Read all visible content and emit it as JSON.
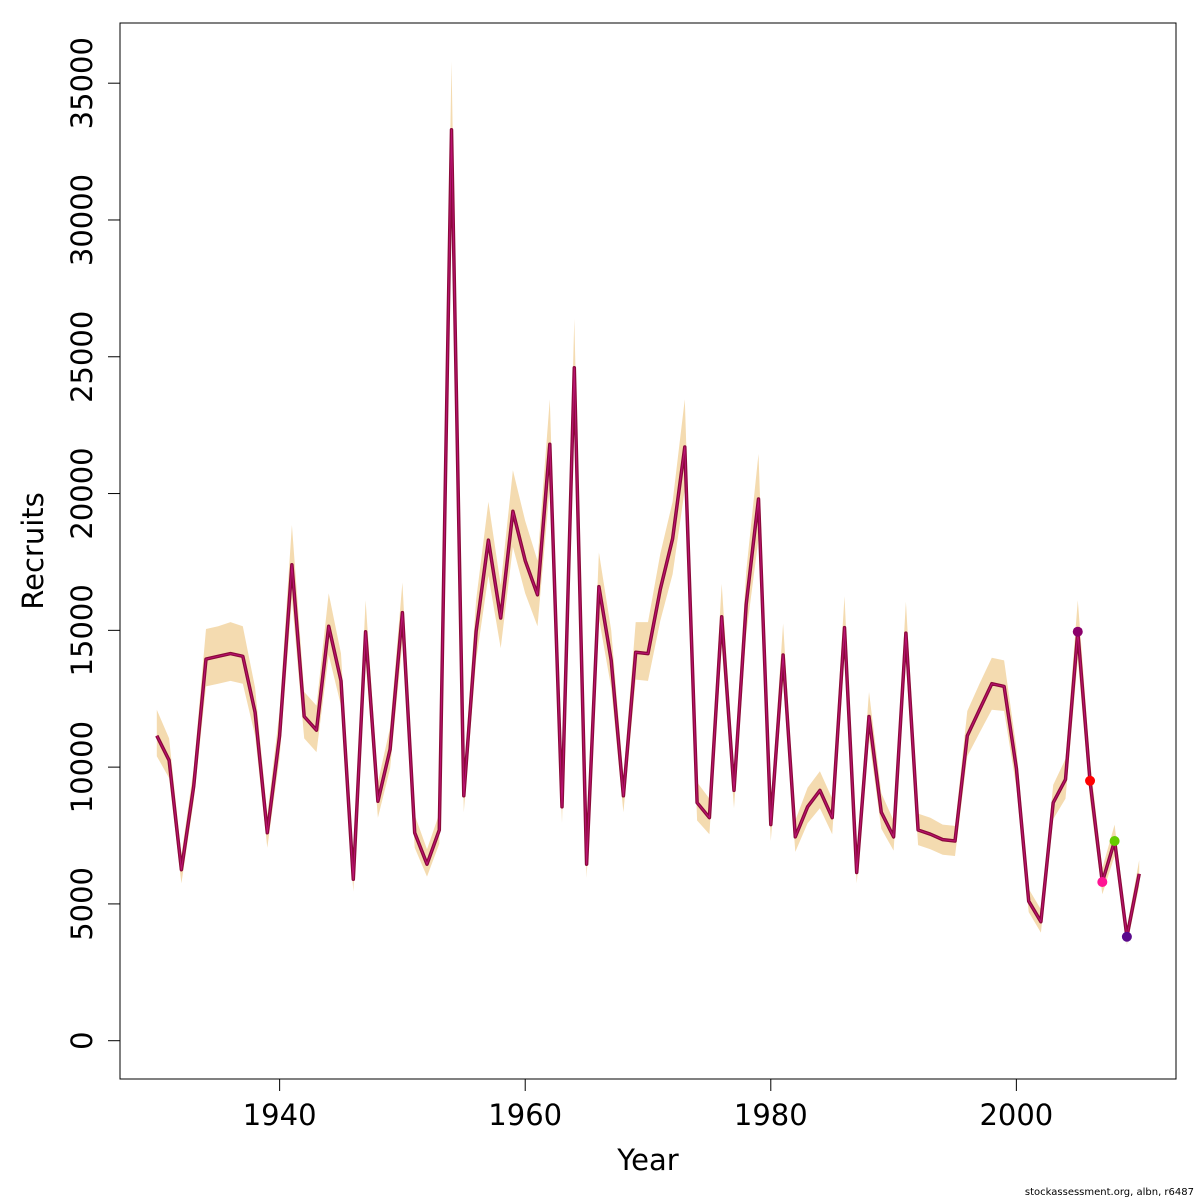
{
  "chart_data": {
    "type": "line",
    "xlabel": "Year",
    "ylabel": "Recruits",
    "xlim": [
      1927,
      2013
    ],
    "ylim": [
      -1400,
      37200
    ],
    "x_ticks": [
      1940,
      1960,
      1980,
      2000
    ],
    "y_ticks": [
      0,
      5000,
      10000,
      15000,
      20000,
      25000,
      30000,
      35000
    ],
    "grid": false,
    "legend": "none",
    "colors": {
      "band": "#f4dbb0",
      "line": "#8b0a3a",
      "inner_line": "#c71585"
    },
    "x": [
      1930,
      1931,
      1932,
      1933,
      1934,
      1935,
      1936,
      1937,
      1938,
      1939,
      1940,
      1941,
      1942,
      1943,
      1944,
      1945,
      1946,
      1947,
      1948,
      1949,
      1950,
      1951,
      1952,
      1953,
      1954,
      1955,
      1956,
      1957,
      1958,
      1959,
      1960,
      1961,
      1962,
      1963,
      1964,
      1965,
      1966,
      1967,
      1968,
      1969,
      1970,
      1971,
      1972,
      1973,
      1974,
      1975,
      1976,
      1977,
      1978,
      1979,
      1980,
      1981,
      1982,
      1983,
      1984,
      1985,
      1986,
      1987,
      1988,
      1989,
      1990,
      1991,
      1992,
      1993,
      1994,
      1995,
      1996,
      1997,
      1998,
      1999,
      2000,
      2001,
      2002,
      2003,
      2004,
      2005,
      2006,
      2007,
      2008,
      2009,
      2010
    ],
    "series": [
      {
        "values": [
          11150,
          10250,
          6250,
          9300,
          13950,
          14050,
          14150,
          14050,
          12000,
          7600,
          11150,
          17400,
          11850,
          11350,
          15150,
          13150,
          5900,
          14950,
          8750,
          10650,
          15650,
          7600,
          6450,
          7700,
          33300,
          8950,
          14950,
          18300,
          15450,
          19350,
          17550,
          16300,
          21800,
          8550,
          24600,
          6450,
          16600,
          13900,
          8950,
          14200,
          14150,
          16500,
          18350,
          21700,
          8700,
          8150,
          15500,
          9150,
          15950,
          19800,
          7900,
          14100,
          7450,
          8550,
          9150,
          8150,
          15100,
          6150,
          11850,
          8350,
          7450,
          14900,
          7700,
          7550,
          7350,
          7300,
          11150,
          12100,
          13050,
          12950,
          9950,
          5100,
          4350,
          8700,
          9550,
          14950,
          9500,
          5800,
          7300,
          3800,
          6100
        ],
        "lower": [
          10400,
          9600,
          5750,
          8750,
          12950,
          13050,
          13150,
          13050,
          11150,
          7050,
          10350,
          16150,
          11050,
          10550,
          14100,
          12250,
          5450,
          13850,
          8150,
          9950,
          14550,
          7050,
          6000,
          7200,
          30700,
          8350,
          13900,
          17000,
          14350,
          18050,
          16350,
          15150,
          20250,
          7950,
          22850,
          5950,
          15450,
          12900,
          8350,
          13200,
          13150,
          15350,
          17050,
          20150,
          8050,
          7550,
          14400,
          8500,
          14850,
          18350,
          7300,
          13100,
          6900,
          7950,
          8500,
          7550,
          14050,
          5750,
          11050,
          7750,
          6950,
          13850,
          7150,
          7000,
          6800,
          6750,
          10400,
          11250,
          12100,
          12050,
          9250,
          4700,
          3950,
          8100,
          8850,
          13950,
          8800,
          5350,
          6750,
          3500,
          5650
        ],
        "upper": [
          12100,
          11050,
          6800,
          9950,
          15050,
          15150,
          15300,
          15150,
          12900,
          8250,
          12050,
          18850,
          12750,
          12250,
          16350,
          14150,
          6450,
          16100,
          9450,
          11450,
          16750,
          8250,
          7000,
          8300,
          35800,
          9650,
          16100,
          19700,
          16650,
          20850,
          19000,
          17550,
          23450,
          9250,
          26400,
          7050,
          17850,
          15000,
          9650,
          15300,
          15300,
          17800,
          19700,
          23450,
          9450,
          8850,
          16700,
          9850,
          17150,
          21450,
          8600,
          15250,
          8050,
          9250,
          9850,
          8850,
          16250,
          6700,
          12750,
          9050,
          8050,
          16050,
          8300,
          8150,
          7900,
          7850,
          12050,
          13050,
          14000,
          13900,
          10700,
          5550,
          4800,
          9350,
          10300,
          16100,
          10250,
          6300,
          7900,
          4150,
          6600
        ]
      }
    ],
    "highlight_points": [
      {
        "x": 2005,
        "y": 14950,
        "color": "#8b006b"
      },
      {
        "x": 2006,
        "y": 9500,
        "color": "#ff0000"
      },
      {
        "x": 2007,
        "y": 5800,
        "color": "#ff1493"
      },
      {
        "x": 2008,
        "y": 7300,
        "color": "#66cc00"
      },
      {
        "x": 2009,
        "y": 3800,
        "color": "#5a0a8c"
      }
    ]
  },
  "credit": "stockassessment.org, albn, r6487"
}
